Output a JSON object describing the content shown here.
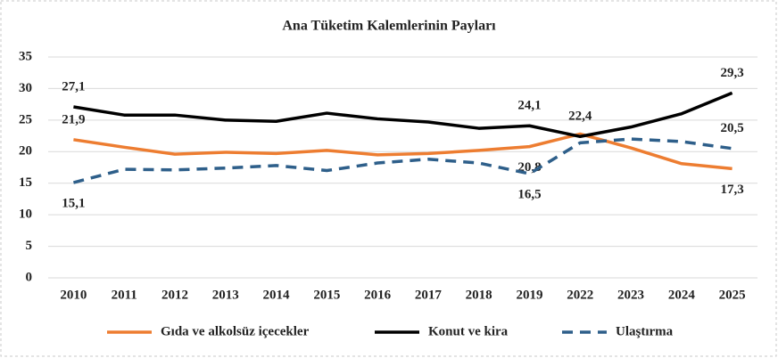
{
  "chart_data": {
    "type": "line",
    "title": "Ana Tüketim Kalemlerinin Payları",
    "categories": [
      "2010",
      "2011",
      "2012",
      "2013",
      "2014",
      "2015",
      "2016",
      "2017",
      "2018",
      "2019",
      "2022",
      "2023",
      "2024",
      "2025"
    ],
    "series": [
      {
        "name": "Gıda ve alkolsüz içecekler",
        "color": "#ed7d31",
        "dash": "solid",
        "values": [
          21.9,
          20.7,
          19.6,
          19.9,
          19.7,
          20.2,
          19.5,
          19.7,
          20.2,
          20.8,
          22.8,
          20.6,
          18.1,
          17.3
        ],
        "value_labels": [
          "21,9",
          null,
          null,
          null,
          null,
          null,
          null,
          null,
          null,
          "20,8",
          null,
          null,
          null,
          "17,3"
        ]
      },
      {
        "name": "Konut ve kira",
        "color": "#000000",
        "dash": "solid",
        "values": [
          27.1,
          25.8,
          25.8,
          25.0,
          24.8,
          26.1,
          25.2,
          24.7,
          23.7,
          24.1,
          22.4,
          23.9,
          26.0,
          29.3
        ],
        "value_labels": [
          "27,1",
          null,
          null,
          null,
          null,
          null,
          null,
          null,
          null,
          "24,1",
          "22,4",
          null,
          null,
          "29,3"
        ]
      },
      {
        "name": "Ulaştırma",
        "color": "#2e5f8a",
        "dash": "dashed",
        "values": [
          15.1,
          17.2,
          17.1,
          17.4,
          17.8,
          17.0,
          18.2,
          18.8,
          18.2,
          16.5,
          21.4,
          22.0,
          21.6,
          20.5
        ],
        "value_labels": [
          "15,1",
          null,
          null,
          null,
          null,
          null,
          null,
          null,
          null,
          "16,5",
          null,
          null,
          null,
          "20,5"
        ]
      }
    ],
    "ylim": [
      0,
      35
    ],
    "yticks": [
      0,
      5,
      10,
      15,
      20,
      25,
      30,
      35
    ],
    "grid": true,
    "legend": "bottom"
  }
}
